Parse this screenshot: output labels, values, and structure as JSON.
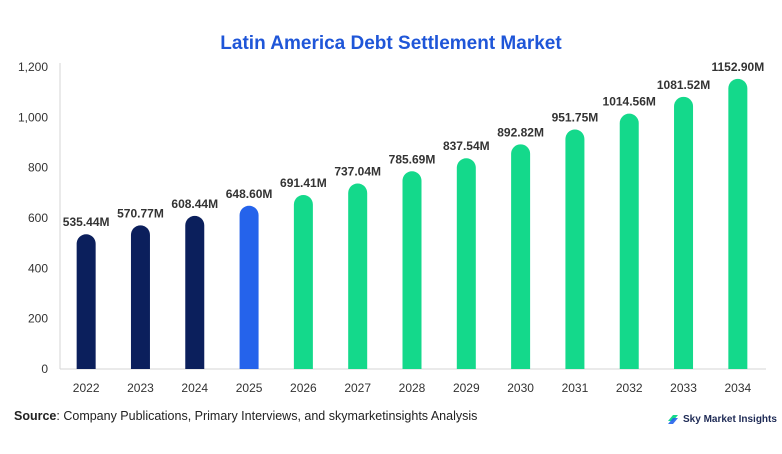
{
  "title": "Latin America Debt Settlement Market",
  "source_label": "Source",
  "source_text": ": Company Publications, Primary Interviews, and skymarketinsights Analysis",
  "brand_name": "Sky Market Insights",
  "chart_data": {
    "type": "bar",
    "title": "Latin America Debt Settlement Market",
    "xlabel": "",
    "ylabel": "",
    "categories": [
      "2022",
      "2023",
      "2024",
      "2025",
      "2026",
      "2027",
      "2028",
      "2029",
      "2030",
      "2031",
      "2032",
      "2033",
      "2034"
    ],
    "values": [
      535.44,
      570.77,
      608.44,
      648.6,
      691.41,
      737.04,
      785.69,
      837.54,
      892.82,
      951.75,
      1014.56,
      1081.52,
      1152.9
    ],
    "data_labels": [
      "535.44M",
      "570.77M",
      "608.44M",
      "648.60M",
      "691.41M",
      "737.04M",
      "785.69M",
      "837.54M",
      "892.82M",
      "951.75M",
      "1014.56M",
      "1081.52M",
      "1152.90M"
    ],
    "bar_colors": [
      "#0b1f5c",
      "#0b1f5c",
      "#0b1f5c",
      "#2563eb",
      "#14d98b",
      "#14d98b",
      "#14d98b",
      "#14d98b",
      "#14d98b",
      "#14d98b",
      "#14d98b",
      "#14d98b",
      "#14d98b"
    ],
    "ylim": [
      0,
      1200
    ],
    "yticks": [
      0,
      200,
      400,
      600,
      800,
      1000,
      1200
    ],
    "ytick_labels": [
      "0",
      "200",
      "400",
      "600",
      "800",
      "1,000",
      "1,200"
    ],
    "grid": false
  }
}
